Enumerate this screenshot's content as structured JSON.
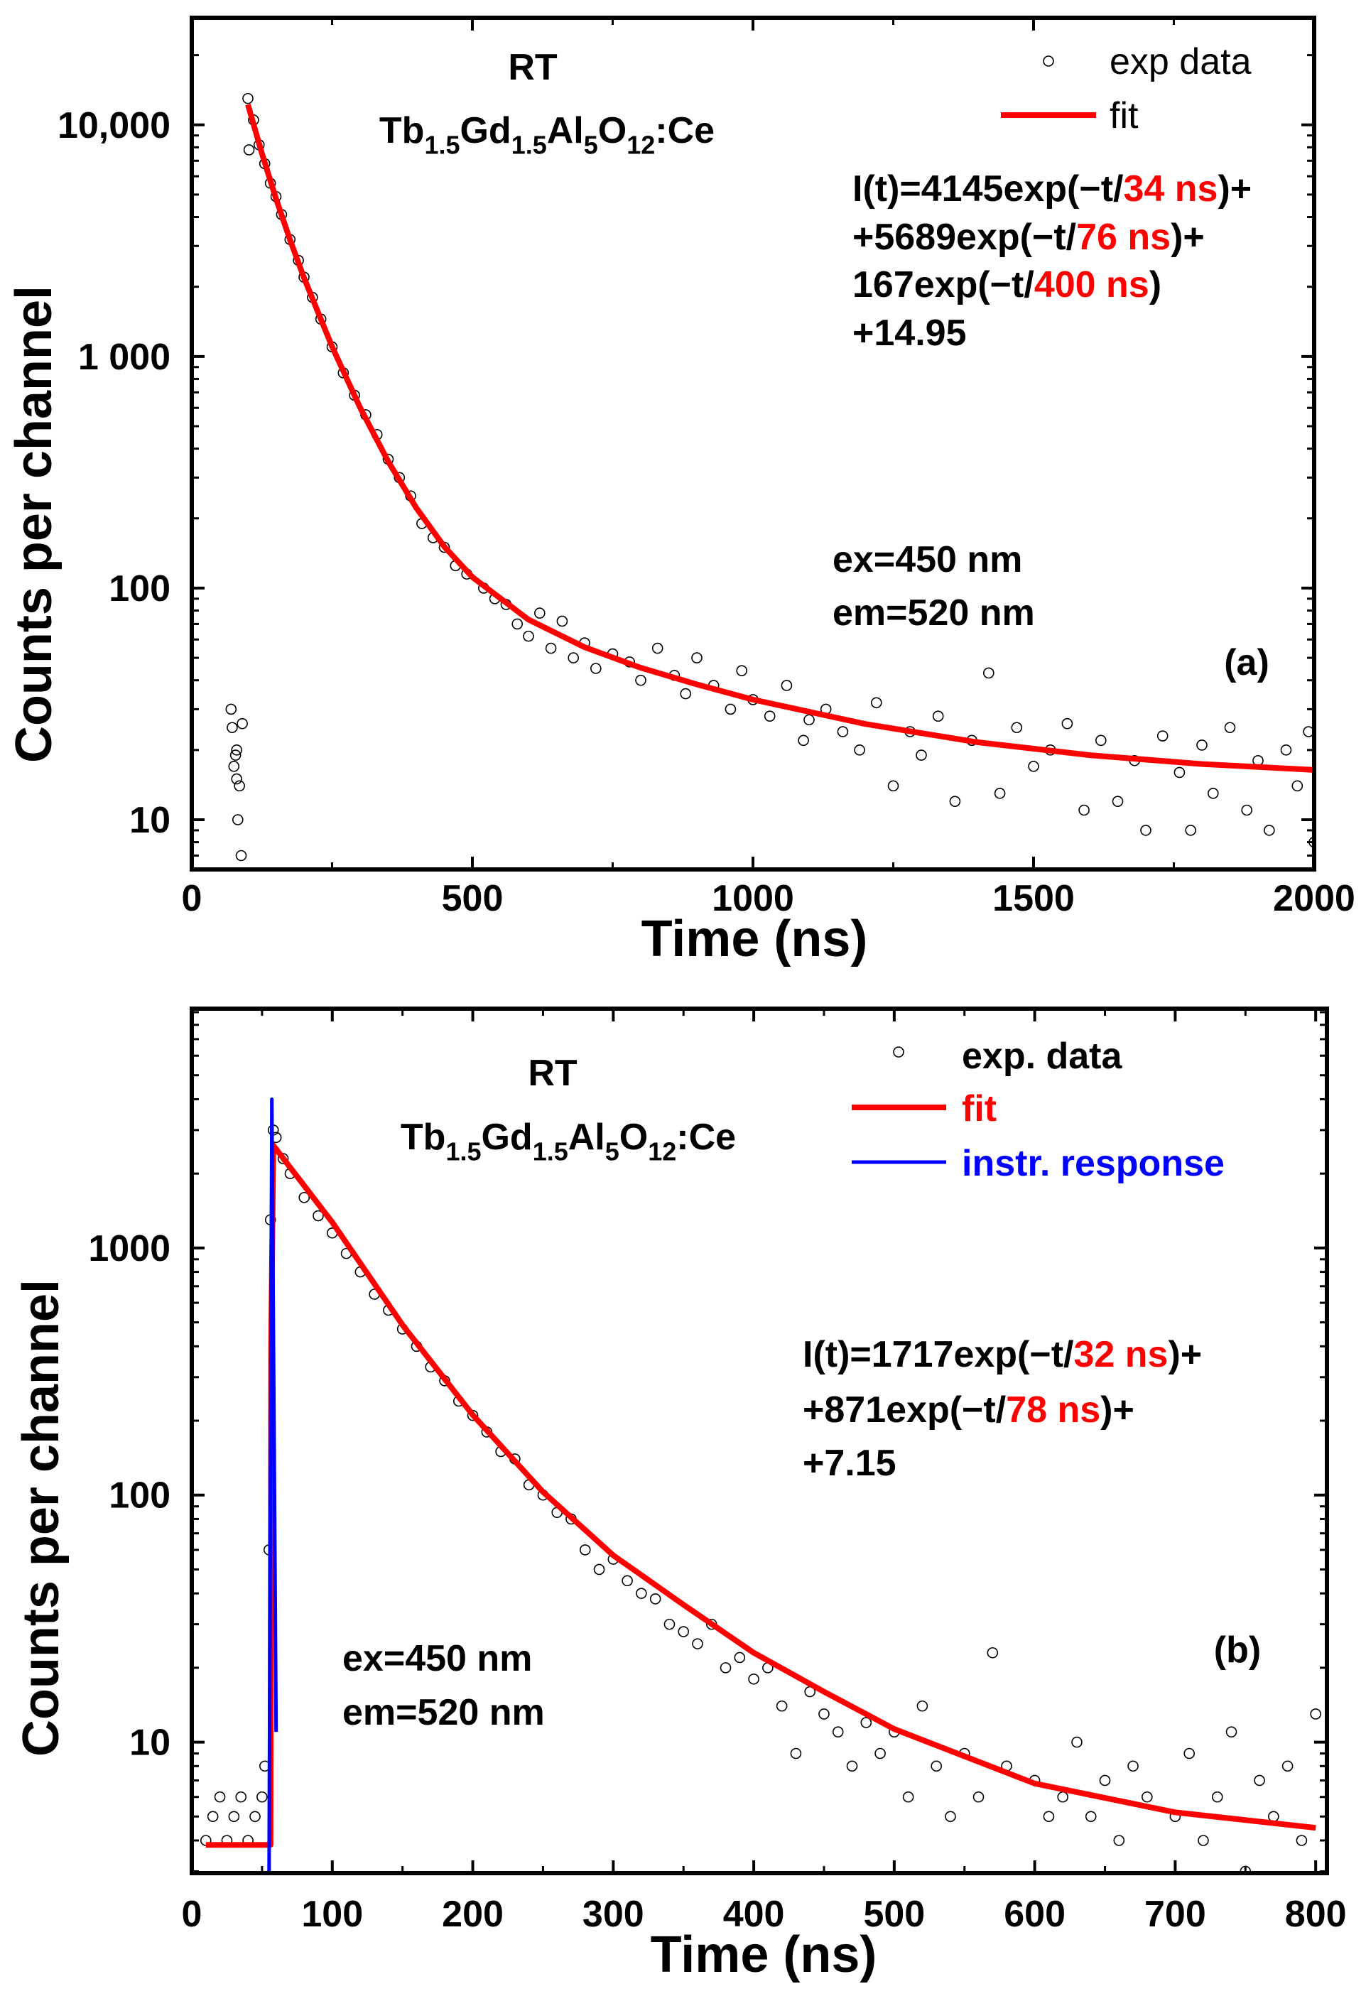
{
  "chart_data": [
    {
      "type": "scatter",
      "panel_label": "(a)",
      "xlabel": "Time (ns)",
      "ylabel": "Counts per channel",
      "xlim": [
        0,
        2000
      ],
      "ylim": [
        6.1,
        29000
      ],
      "yscale": "log",
      "x_ticks": [
        0,
        500,
        1000,
        1500,
        2000
      ],
      "x_tick_labels": [
        "0",
        "500",
        "1000",
        "1500",
        "2000"
      ],
      "y_ticks": [
        10,
        100,
        1000,
        10000
      ],
      "y_tick_labels": [
        "10",
        "100",
        "1 000",
        "10,000"
      ],
      "grid": false,
      "legend_position": "top-right",
      "annotations": {
        "condition": "RT",
        "sample": [
          {
            "t": "Tb"
          },
          {
            "t": "1.5",
            "sub": true
          },
          {
            "t": "Gd"
          },
          {
            "t": "1.5",
            "sub": true
          },
          {
            "t": "Al"
          },
          {
            "t": "5",
            "sub": true
          },
          {
            "t": "O"
          },
          {
            "t": "12",
            "sub": true
          },
          {
            "t": ":Ce"
          }
        ],
        "equation": [
          [
            {
              "t": "I(t)=4145exp(−t/"
            },
            {
              "t": "34 ns",
              "red": true
            },
            {
              "t": ")+"
            }
          ],
          [
            {
              "t": "+5689exp(−t/"
            },
            {
              "t": "76 ns",
              "red": true
            },
            {
              "t": ")+"
            }
          ],
          [
            {
              "t": "167exp(−t/"
            },
            {
              "t": "400 ns",
              "red": true
            },
            {
              "t": ")"
            }
          ],
          [
            {
              "t": "+14.95"
            }
          ]
        ],
        "excitation": "ex=450 nm",
        "emission": "em=520 nm"
      },
      "series": [
        {
          "name": "exp data",
          "kind": "scatter",
          "color": "#000000",
          "x": [
            70,
            72,
            75,
            78,
            80,
            82,
            85,
            88,
            90,
            80,
            100,
            102,
            110,
            120,
            130,
            140,
            150,
            160,
            175,
            190,
            200,
            215,
            230,
            250,
            270,
            290,
            310,
            330,
            350,
            370,
            390,
            410,
            430,
            450,
            470,
            490,
            520,
            540,
            560,
            580,
            600,
            620,
            640,
            660,
            680,
            700,
            720,
            750,
            780,
            800,
            830,
            860,
            880,
            900,
            930,
            960,
            980,
            1000,
            1030,
            1060,
            1090,
            1100,
            1130,
            1160,
            1190,
            1220,
            1250,
            1280,
            1300,
            1330,
            1360,
            1390,
            1420,
            1440,
            1470,
            1500,
            1530,
            1560,
            1590,
            1620,
            1650,
            1680,
            1700,
            1730,
            1760,
            1780,
            1800,
            1820,
            1850,
            1880,
            1900,
            1920,
            1950,
            1970,
            1990,
            2000
          ],
          "y": [
            30,
            25,
            17,
            19,
            15,
            10,
            14,
            7,
            26,
            20,
            13000,
            7800,
            10500,
            8200,
            6800,
            5600,
            4900,
            4100,
            3200,
            2600,
            2200,
            1800,
            1450,
            1100,
            850,
            680,
            560,
            460,
            360,
            300,
            250,
            190,
            165,
            150,
            125,
            115,
            100,
            90,
            85,
            70,
            62,
            78,
            55,
            72,
            50,
            58,
            45,
            52,
            48,
            40,
            55,
            42,
            35,
            50,
            38,
            30,
            44,
            33,
            28,
            38,
            22,
            27,
            30,
            24,
            20,
            32,
            14,
            24,
            19,
            28,
            12,
            22,
            43,
            13,
            25,
            17,
            20,
            26,
            11,
            22,
            12,
            18,
            9,
            23,
            16,
            9,
            21,
            13,
            25,
            11,
            18,
            9,
            20,
            14,
            24,
            8
          ]
        },
        {
          "name": "fit",
          "kind": "line",
          "color": "#ff0000",
          "x": [
            100,
            125,
            150,
            175,
            200,
            250,
            300,
            350,
            400,
            450,
            500,
            600,
            700,
            800,
            900,
            1000,
            1200,
            1400,
            1600,
            1800,
            2000
          ],
          "y": [
            12240,
            7513,
            4806,
            3188,
            2185,
            1103,
            601,
            352,
            222,
            151,
            111.6,
            73.1,
            55.6,
            45.3,
            38.4,
            33.0,
            25.9,
            21.6,
            19.0,
            17.4,
            16.4
          ]
        }
      ]
    },
    {
      "type": "scatter",
      "panel_label": "(b)",
      "xlabel": "Time (ns)",
      "ylabel": "Counts per channel",
      "xlim": [
        0,
        808
      ],
      "ylim": [
        2.95,
        9300
      ],
      "yscale": "log",
      "x_ticks": [
        0,
        100,
        200,
        300,
        400,
        500,
        600,
        700,
        800
      ],
      "x_tick_labels": [
        "0",
        "100",
        "200",
        "300",
        "400",
        "500",
        "600",
        "700",
        "800"
      ],
      "y_ticks": [
        10,
        100,
        1000
      ],
      "y_tick_labels": [
        "10",
        "100",
        "1000"
      ],
      "grid": false,
      "legend_position": "top-right",
      "annotations": {
        "condition": "RT",
        "sample": [
          {
            "t": "Tb"
          },
          {
            "t": "1.5",
            "sub": true
          },
          {
            "t": "Gd"
          },
          {
            "t": "1.5",
            "sub": true
          },
          {
            "t": "Al"
          },
          {
            "t": "5",
            "sub": true
          },
          {
            "t": "O"
          },
          {
            "t": "12",
            "sub": true
          },
          {
            "t": ":Ce"
          }
        ],
        "equation": [
          [
            {
              "t": "I(t)=1717exp(−t/"
            },
            {
              "t": "32 ns",
              "red": true
            },
            {
              "t": ")+"
            }
          ],
          [
            {
              "t": "+871exp(−t/"
            },
            {
              "t": "78 ns",
              "red": true
            },
            {
              "t": ")+"
            }
          ],
          [
            {
              "t": "+7.15"
            }
          ]
        ],
        "excitation": "ex=450 nm",
        "emission": "em=520 nm"
      },
      "series": [
        {
          "name": "exp. data",
          "kind": "scatter",
          "color": "#000000",
          "x": [
            10,
            15,
            20,
            25,
            30,
            35,
            40,
            45,
            50,
            52,
            55,
            56,
            58,
            60,
            65,
            70,
            80,
            90,
            100,
            110,
            120,
            130,
            140,
            150,
            160,
            170,
            180,
            190,
            200,
            210,
            220,
            230,
            240,
            250,
            260,
            270,
            280,
            290,
            300,
            310,
            320,
            330,
            340,
            350,
            360,
            370,
            380,
            390,
            400,
            410,
            420,
            430,
            440,
            450,
            460,
            470,
            480,
            490,
            500,
            510,
            520,
            530,
            540,
            550,
            560,
            570,
            580,
            600,
            610,
            620,
            630,
            640,
            650,
            660,
            670,
            680,
            700,
            710,
            720,
            730,
            740,
            750,
            760,
            770,
            780,
            790,
            800
          ],
          "y": [
            4,
            5,
            6,
            4,
            5,
            6,
            4,
            5,
            6,
            8,
            60,
            1300,
            3000,
            2800,
            2300,
            2000,
            1600,
            1350,
            1150,
            950,
            800,
            650,
            560,
            470,
            400,
            330,
            290,
            240,
            210,
            180,
            150,
            140,
            110,
            100,
            85,
            80,
            60,
            50,
            55,
            45,
            40,
            38,
            30,
            28,
            25,
            30,
            20,
            22,
            18,
            20,
            14,
            9,
            16,
            13,
            11,
            8,
            12,
            9,
            11,
            6,
            14,
            8,
            5,
            9,
            6,
            23,
            8,
            7,
            5,
            6,
            10,
            5,
            7,
            4,
            8,
            6,
            5,
            9,
            4,
            6,
            11,
            3,
            7,
            5,
            8,
            4,
            13
          ]
        },
        {
          "name": "fit",
          "kind": "line",
          "color": "#ff0000",
          "x": [
            10,
            56,
            56.5,
            58,
            100,
            150,
            200,
            250,
            300,
            350,
            400,
            450,
            500,
            600,
            700,
            800
          ],
          "y": [
            3.84,
            3.84,
            400,
            2600,
            1270,
            488,
            211,
            103,
            57,
            36,
            23,
            16,
            11.3,
            6.8,
            5.2,
            4.5
          ]
        },
        {
          "name": "instr. response",
          "kind": "line",
          "color": "#0000ff",
          "x": [
            55,
            57,
            60
          ],
          "y": [
            3,
            4000,
            11
          ]
        }
      ]
    }
  ]
}
